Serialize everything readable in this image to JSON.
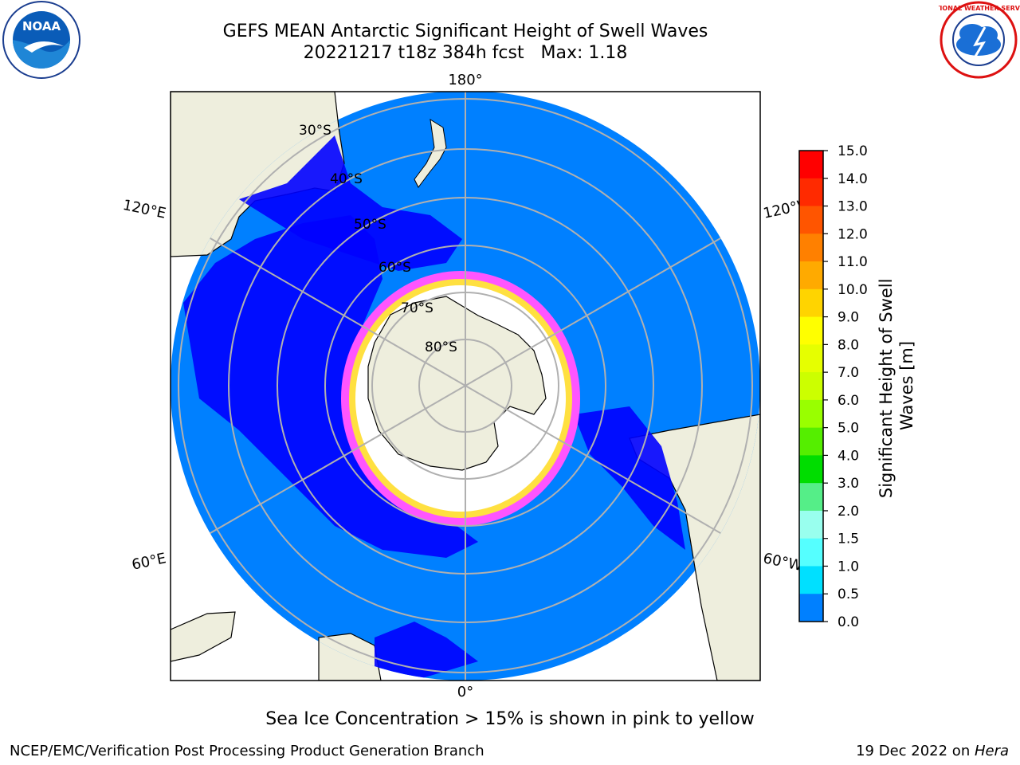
{
  "header": {
    "title_line1": "GEFS MEAN Antarctic Significant Height of Swell Waves",
    "title_line2": "20221217 t18z 384h fcst   Max: 1.18"
  },
  "logos": {
    "left": {
      "name": "noaa-logo",
      "text": "NOAA"
    },
    "right": {
      "name": "nws-logo",
      "text": "NATIONAL WEATHER SERVICE"
    }
  },
  "map": {
    "projection": "south-polar-stereographic",
    "lon_labels": {
      "top": "180°",
      "bottom": "0°",
      "upper_left": "120°E",
      "upper_right": "120°W",
      "lower_left": "60°E",
      "lower_right": "60°W"
    },
    "lat_labels": [
      "30°S",
      "40°S",
      "50°S",
      "60°S",
      "70°S",
      "80°S"
    ],
    "colors": {
      "ocean_low": "#0000ff",
      "ocean_main": "#0080ff",
      "land": "#eeeedd",
      "ice_white": "#ffffff",
      "ice_pink": "#ff55ff",
      "ice_yellow": "#ffe040",
      "grid": "#b0b0b0"
    }
  },
  "colorbar": {
    "label": "Significant Height of Swell Waves [m]",
    "ticks": [
      "15.0",
      "14.0",
      "13.0",
      "12.0",
      "11.0",
      "10.0",
      "9.0",
      "8.0",
      "7.0",
      "6.0",
      "5.0",
      "4.0",
      "3.0",
      "2.0",
      "1.5",
      "1.0",
      "0.5",
      "0.0"
    ],
    "colors_top_to_bottom": [
      "#ff0000",
      "#ff2a00",
      "#ff5500",
      "#ff8000",
      "#ffaa00",
      "#ffd400",
      "#ffff00",
      "#e6ff00",
      "#ccff00",
      "#99ff00",
      "#55ee00",
      "#00dd00",
      "#55ee88",
      "#99ffee",
      "#55ffff",
      "#00ffff",
      "#00e0ff",
      "#0080ff",
      "#0000ff"
    ]
  },
  "footer": {
    "note": "Sea Ice Concentration > 15% is shown in pink to yellow",
    "credit_left": "NCEP/EMC/Verification Post Processing Product Generation Branch",
    "credit_date": "19 Dec 2022 on ",
    "credit_machine": "Hera"
  }
}
